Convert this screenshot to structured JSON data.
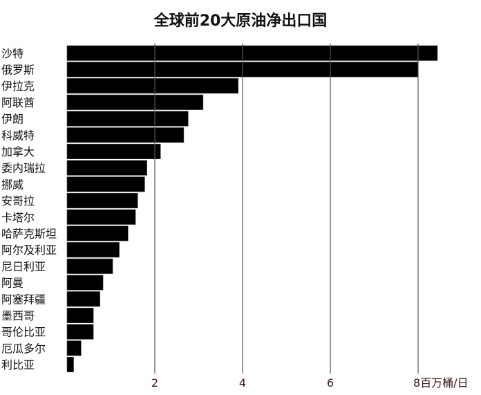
{
  "chart_data": {
    "type": "bar",
    "orientation": "horizontal",
    "title": "全球前20大原油净出口国",
    "unit_label": "百万桶/日",
    "categories": [
      "沙特",
      "俄罗斯",
      "伊拉克",
      "阿联酋",
      "伊朗",
      "科威特",
      "加拿大",
      "委内瑞拉",
      "挪威",
      "安哥拉",
      "卡塔尔",
      "哈萨克斯坦",
      "阿尔及利亚",
      "尼日利亚",
      "阿曼",
      "阿塞拜疆",
      "墨西哥",
      "哥伦比亚",
      "厄瓜多尔",
      "利比亚"
    ],
    "values": [
      8.44,
      8.0,
      3.9,
      3.1,
      2.76,
      2.66,
      2.13,
      1.82,
      1.77,
      1.61,
      1.56,
      1.39,
      1.19,
      1.04,
      0.82,
      0.75,
      0.6,
      0.6,
      0.32,
      0.15
    ],
    "xticks": [
      2,
      4,
      6,
      8
    ],
    "xtick_labels": [
      "2",
      "4",
      "6",
      "8百万桶/日"
    ],
    "xlim": [
      0,
      8.5
    ],
    "grid": "vertical",
    "legend": "none",
    "colors": {
      "bar": "#000000",
      "grid": "#555555",
      "tick_text": "#3a1414",
      "label_text": "#111111"
    }
  }
}
